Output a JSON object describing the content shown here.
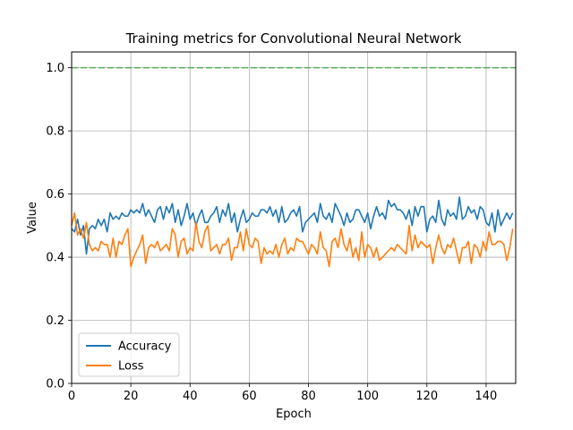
{
  "chart_data": {
    "type": "line",
    "title": "Training metrics for Convolutional Neural Network",
    "xlabel": "Epoch",
    "ylabel": "Value",
    "xlim": [
      0,
      150
    ],
    "ylim": [
      0,
      1.05
    ],
    "xticks": [
      0,
      20,
      40,
      60,
      80,
      100,
      120,
      140
    ],
    "yticks": [
      0.0,
      0.2,
      0.4,
      0.6,
      0.8,
      1.0
    ],
    "xtick_labels": [
      "0",
      "20",
      "40",
      "60",
      "80",
      "100",
      "120",
      "140"
    ],
    "ytick_labels": [
      "0.0",
      "0.2",
      "0.4",
      "0.6",
      "0.8",
      "1.0"
    ],
    "grid": true,
    "legend_position": "lower-left",
    "reference_line": {
      "y": 1.0,
      "color": "#2ca02c",
      "style": "dashed"
    },
    "series": [
      {
        "name": "Accuracy",
        "color": "#1f77b4",
        "values": [
          0.49,
          0.48,
          0.52,
          0.47,
          0.5,
          0.41,
          0.49,
          0.5,
          0.49,
          0.52,
          0.5,
          0.52,
          0.48,
          0.54,
          0.52,
          0.53,
          0.52,
          0.54,
          0.53,
          0.53,
          0.55,
          0.54,
          0.55,
          0.54,
          0.57,
          0.53,
          0.55,
          0.53,
          0.51,
          0.55,
          0.56,
          0.52,
          0.56,
          0.54,
          0.57,
          0.51,
          0.55,
          0.5,
          0.53,
          0.57,
          0.52,
          0.54,
          0.5,
          0.53,
          0.55,
          0.51,
          0.51,
          0.53,
          0.54,
          0.56,
          0.51,
          0.55,
          0.53,
          0.57,
          0.51,
          0.54,
          0.48,
          0.52,
          0.55,
          0.51,
          0.52,
          0.54,
          0.53,
          0.53,
          0.55,
          0.55,
          0.54,
          0.56,
          0.53,
          0.55,
          0.51,
          0.56,
          0.51,
          0.52,
          0.54,
          0.55,
          0.53,
          0.56,
          0.48,
          0.51,
          0.52,
          0.53,
          0.54,
          0.51,
          0.57,
          0.53,
          0.52,
          0.54,
          0.51,
          0.57,
          0.55,
          0.53,
          0.5,
          0.54,
          0.51,
          0.52,
          0.55,
          0.55,
          0.53,
          0.51,
          0.54,
          0.49,
          0.53,
          0.56,
          0.53,
          0.54,
          0.52,
          0.58,
          0.56,
          0.57,
          0.55,
          0.55,
          0.54,
          0.52,
          0.55,
          0.5,
          0.56,
          0.53,
          0.56,
          0.56,
          0.48,
          0.52,
          0.53,
          0.51,
          0.58,
          0.52,
          0.5,
          0.55,
          0.53,
          0.54,
          0.52,
          0.59,
          0.52,
          0.53,
          0.56,
          0.54,
          0.55,
          0.52,
          0.56,
          0.55,
          0.51,
          0.5,
          0.54,
          0.48,
          0.55,
          0.5,
          0.52,
          0.54,
          0.52,
          0.54
        ],
        "x_start": 0
      },
      {
        "name": "Loss",
        "color": "#ff7f0e",
        "values": [
          0.5,
          0.54,
          0.47,
          0.49,
          0.46,
          0.51,
          0.44,
          0.42,
          0.43,
          0.42,
          0.45,
          0.44,
          0.44,
          0.4,
          0.46,
          0.4,
          0.45,
          0.44,
          0.47,
          0.49,
          0.37,
          0.4,
          0.42,
          0.44,
          0.47,
          0.38,
          0.43,
          0.44,
          0.43,
          0.45,
          0.42,
          0.43,
          0.44,
          0.42,
          0.49,
          0.47,
          0.4,
          0.45,
          0.46,
          0.41,
          0.43,
          0.42,
          0.51,
          0.45,
          0.43,
          0.48,
          0.5,
          0.42,
          0.43,
          0.44,
          0.41,
          0.44,
          0.44,
          0.46,
          0.39,
          0.43,
          0.43,
          0.48,
          0.42,
          0.49,
          0.44,
          0.43,
          0.46,
          0.45,
          0.38,
          0.43,
          0.41,
          0.42,
          0.41,
          0.44,
          0.4,
          0.44,
          0.46,
          0.41,
          0.43,
          0.42,
          0.46,
          0.45,
          0.45,
          0.43,
          0.41,
          0.44,
          0.43,
          0.41,
          0.48,
          0.43,
          0.42,
          0.37,
          0.45,
          0.46,
          0.43,
          0.49,
          0.44,
          0.42,
          0.46,
          0.4,
          0.43,
          0.39,
          0.48,
          0.4,
          0.44,
          0.43,
          0.4,
          0.43,
          0.39,
          0.4,
          0.41,
          0.42,
          0.43,
          0.42,
          0.44,
          0.43,
          0.42,
          0.41,
          0.5,
          0.42,
          0.47,
          0.43,
          0.45,
          0.44,
          0.43,
          0.44,
          0.38,
          0.43,
          0.47,
          0.43,
          0.41,
          0.44,
          0.43,
          0.46,
          0.42,
          0.38,
          0.43,
          0.43,
          0.45,
          0.38,
          0.44,
          0.43,
          0.4,
          0.45,
          0.42,
          0.48,
          0.44,
          0.44,
          0.45,
          0.45,
          0.44,
          0.39,
          0.43,
          0.49
        ],
        "x_start": 0
      }
    ]
  }
}
